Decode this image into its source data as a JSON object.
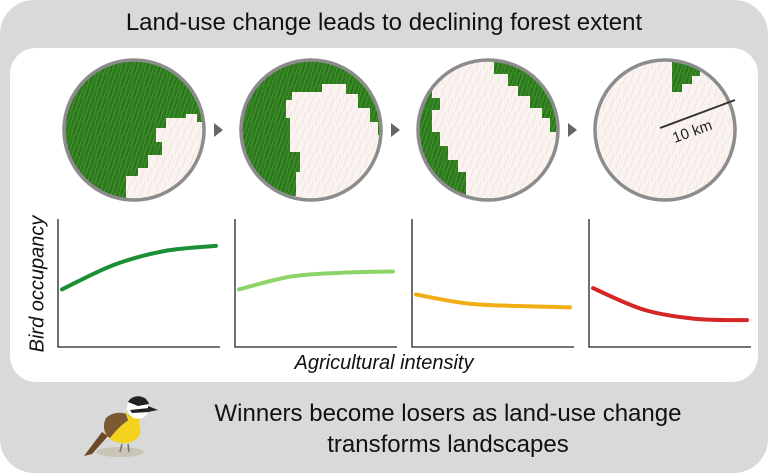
{
  "title": "Land-use change leads to declining forest extent",
  "scale_label": "10 km",
  "chart_data": [
    {
      "type": "line",
      "panel": 1,
      "series": [
        {
          "values": [
            0.45,
            0.64,
            0.75,
            0.79
          ]
        }
      ],
      "color": "#1a8f35"
    },
    {
      "type": "line",
      "panel": 2,
      "series": [
        {
          "values": [
            0.45,
            0.55,
            0.58,
            0.59
          ]
        }
      ],
      "color": "#8dd46a"
    },
    {
      "type": "line",
      "panel": 3,
      "series": [
        {
          "values": [
            0.41,
            0.34,
            0.32,
            0.31
          ]
        }
      ],
      "color": "#f0ae14"
    },
    {
      "type": "line",
      "panel": 4,
      "series": [
        {
          "values": [
            0.46,
            0.29,
            0.22,
            0.21
          ]
        }
      ],
      "color": "#d42626"
    }
  ],
  "axis": {
    "xlabel": "Agricultural intensity",
    "ylabel": "Bird occupancy"
  },
  "caption": {
    "line1": "Winners become losers as land-use change",
    "line2": "transforms landscapes"
  },
  "colors": {
    "forest": "#2f7d1e",
    "cleared": "#faf3ef",
    "rim": "#8c8c8c",
    "panel_bg": "#d9d9d9"
  },
  "icons": [
    "arrow-right-icon",
    "bird-icon"
  ]
}
